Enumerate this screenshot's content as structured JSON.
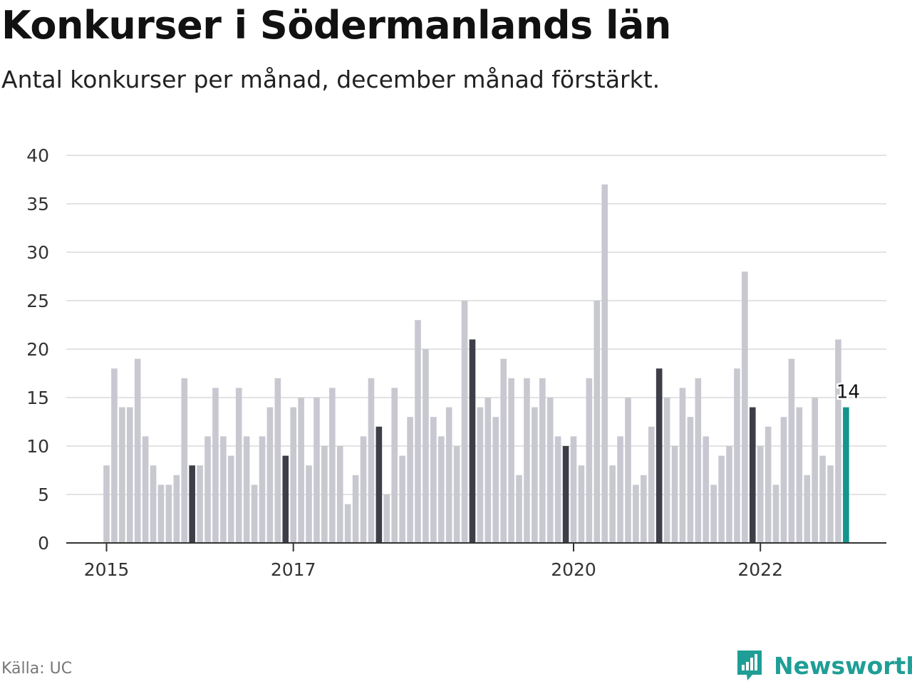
{
  "title": "Konkurser i Södermanlands län",
  "subtitle": "Antal konkurser per månad, december månad förstärkt.",
  "source": "Källa: UC",
  "brand": "Newsworthy",
  "colors": {
    "regular": "#c8c8d0",
    "december": "#3e3e48",
    "latest": "#13958d",
    "grid": "#e3e3e3",
    "axis": "#333333",
    "text": "#333333",
    "brand": "#1f9e95"
  },
  "chart_data": {
    "type": "bar",
    "title": "Konkurser i Södermanlands län",
    "subtitle": "Antal konkurser per månad, december månad förstärkt.",
    "xlabel": "",
    "ylabel": "",
    "ylim": [
      0,
      40
    ],
    "yticks": [
      0,
      5,
      10,
      15,
      20,
      25,
      30,
      35,
      40
    ],
    "x_tick_labels": [
      {
        "label": "2015",
        "index": 0
      },
      {
        "label": "2017",
        "index": 24
      },
      {
        "label": "2020",
        "index": 60
      },
      {
        "label": "2022",
        "index": 84
      }
    ],
    "start": "2015-01",
    "highlight_rule": "december",
    "latest_label": "14",
    "values": [
      8,
      18,
      14,
      14,
      19,
      11,
      8,
      6,
      6,
      7,
      17,
      8,
      8,
      11,
      16,
      11,
      9,
      16,
      11,
      6,
      11,
      14,
      17,
      9,
      14,
      15,
      8,
      15,
      10,
      16,
      10,
      4,
      7,
      11,
      17,
      12,
      5,
      16,
      9,
      13,
      23,
      20,
      13,
      11,
      14,
      10,
      25,
      21,
      14,
      15,
      13,
      19,
      17,
      7,
      17,
      14,
      17,
      15,
      11,
      10,
      11,
      8,
      17,
      25,
      37,
      8,
      11,
      15,
      6,
      7,
      12,
      18,
      15,
      10,
      16,
      13,
      17,
      11,
      6,
      9,
      10,
      18,
      28,
      14,
      10,
      12,
      6,
      13,
      19,
      14,
      7,
      15,
      9,
      8,
      21,
      14
    ]
  }
}
